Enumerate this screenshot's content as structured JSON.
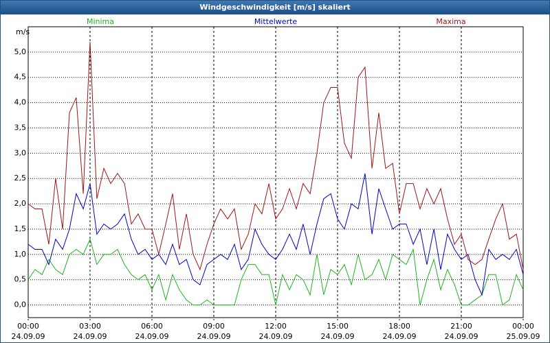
{
  "chart_data": {
    "type": "line",
    "title": "Windgeschwindigkeit [m/s] skaliert",
    "y_label": "m/s",
    "legend": "top",
    "grid": true,
    "ylim": [
      -0.25,
      5.5
    ],
    "yticks": [
      {
        "value": 0,
        "label": "0,0"
      },
      {
        "value": 0.5,
        "label": "0,5"
      },
      {
        "value": 1,
        "label": "1,0"
      },
      {
        "value": 1.5,
        "label": "1,5"
      },
      {
        "value": 2,
        "label": "2,0"
      },
      {
        "value": 2.5,
        "label": "2,5"
      },
      {
        "value": 3,
        "label": "3,0"
      },
      {
        "value": 3.5,
        "label": "3,5"
      },
      {
        "value": 4,
        "label": "4,0"
      },
      {
        "value": 4.5,
        "label": "4,5"
      },
      {
        "value": 5,
        "label": "5,0"
      }
    ],
    "xlim": [
      0,
      24
    ],
    "xticks": [
      {
        "value": 0,
        "label": "00:00\n24.09.09"
      },
      {
        "value": 3,
        "label": "03:00\n24.09.09"
      },
      {
        "value": 6,
        "label": "06:00\n24.09.09"
      },
      {
        "value": 9,
        "label": "09:00\n24.09.09"
      },
      {
        "value": 12,
        "label": "12:00\n24.09.09"
      },
      {
        "value": 15,
        "label": "15:00\n24.09.09"
      },
      {
        "value": 18,
        "label": "18:00\n24.09.09"
      },
      {
        "value": 21,
        "label": "21:00\n24.09.09"
      },
      {
        "value": 24,
        "label": "00:00\n25.09.09"
      }
    ],
    "x": [
      0,
      0.33,
      0.67,
      1,
      1.33,
      1.67,
      2,
      2.33,
      2.67,
      3,
      3.33,
      3.67,
      4,
      4.33,
      4.67,
      5,
      5.33,
      5.67,
      6,
      6.33,
      6.67,
      7,
      7.33,
      7.67,
      8,
      8.33,
      8.67,
      9,
      9.33,
      9.67,
      10,
      10.33,
      10.67,
      11,
      11.33,
      11.67,
      12,
      12.33,
      12.67,
      13,
      13.33,
      13.67,
      14,
      14.33,
      14.67,
      15,
      15.33,
      15.67,
      16,
      16.33,
      16.67,
      17,
      17.33,
      17.67,
      18,
      18.33,
      18.67,
      19,
      19.33,
      19.67,
      20,
      20.33,
      20.67,
      21,
      21.33,
      21.67,
      22,
      22.33,
      22.67,
      23,
      23.33,
      23.67,
      24
    ],
    "series": [
      {
        "name": "Minima",
        "color": "#1db41d",
        "values": [
          0.5,
          0.7,
          0.6,
          0.9,
          0.7,
          0.6,
          1.0,
          1.1,
          1.0,
          1.3,
          0.8,
          1.0,
          1.0,
          1.1,
          0.8,
          0.6,
          0.5,
          0.6,
          0.3,
          0.6,
          0.1,
          0.6,
          0.3,
          0.1,
          0.0,
          0.0,
          0.1,
          0.0,
          0.0,
          0.0,
          0.0,
          0.5,
          0.8,
          0.8,
          0.6,
          0.6,
          0.0,
          0.6,
          0.3,
          0.6,
          0.5,
          0.2,
          1.0,
          0.2,
          0.7,
          0.6,
          0.8,
          0.4,
          1.0,
          0.5,
          0.6,
          0.9,
          0.5,
          1.0,
          0.9,
          0.8,
          1.1,
          0.0,
          0.5,
          0.9,
          0.3,
          0.7,
          0.4,
          0.0,
          0.0,
          0.1,
          0.2,
          0.6,
          0.6,
          0.0,
          0.1,
          0.6,
          0.3
        ]
      },
      {
        "name": "Mittelwerte",
        "color": "#0000c8",
        "values": [
          1.2,
          1.1,
          1.1,
          0.8,
          1.3,
          1.1,
          1.5,
          2.2,
          1.9,
          2.4,
          1.4,
          1.6,
          1.5,
          1.6,
          1.8,
          1.3,
          1.0,
          1.1,
          0.9,
          1.0,
          0.8,
          1.2,
          0.8,
          0.9,
          0.5,
          0.4,
          0.8,
          0.9,
          1.0,
          0.9,
          1.2,
          0.7,
          0.9,
          1.5,
          1.2,
          1.0,
          0.9,
          1.1,
          1.4,
          1.1,
          1.6,
          1.0,
          1.6,
          2.1,
          2.2,
          1.7,
          1.5,
          2.0,
          1.9,
          2.6,
          1.4,
          2.3,
          1.9,
          1.5,
          1.6,
          1.6,
          1.2,
          1.5,
          0.8,
          1.5,
          0.7,
          1.4,
          1.1,
          0.9,
          1.0,
          0.5,
          0.2,
          1.1,
          0.9,
          1.0,
          0.9,
          1.1,
          0.6
        ]
      },
      {
        "name": "Maxima",
        "color": "#a01414",
        "values": [
          2.0,
          1.9,
          1.9,
          1.2,
          2.5,
          1.5,
          3.8,
          4.1,
          2.2,
          5.2,
          2.1,
          2.7,
          2.4,
          2.6,
          2.4,
          1.6,
          1.8,
          1.5,
          1.5,
          1.0,
          1.6,
          2.2,
          1.1,
          1.8,
          1.0,
          0.7,
          1.2,
          1.6,
          1.9,
          1.7,
          1.9,
          1.1,
          1.4,
          2.0,
          1.8,
          2.4,
          1.7,
          1.9,
          2.3,
          1.9,
          2.4,
          2.2,
          3.0,
          4.0,
          4.3,
          4.3,
          3.2,
          2.9,
          4.5,
          4.7,
          2.7,
          3.8,
          2.7,
          2.8,
          1.8,
          2.4,
          2.4,
          1.9,
          2.3,
          2.0,
          2.3,
          1.7,
          1.2,
          1.4,
          0.9,
          0.8,
          0.9,
          1.3,
          1.7,
          2.0,
          1.3,
          1.4,
          0.7
        ]
      }
    ]
  }
}
